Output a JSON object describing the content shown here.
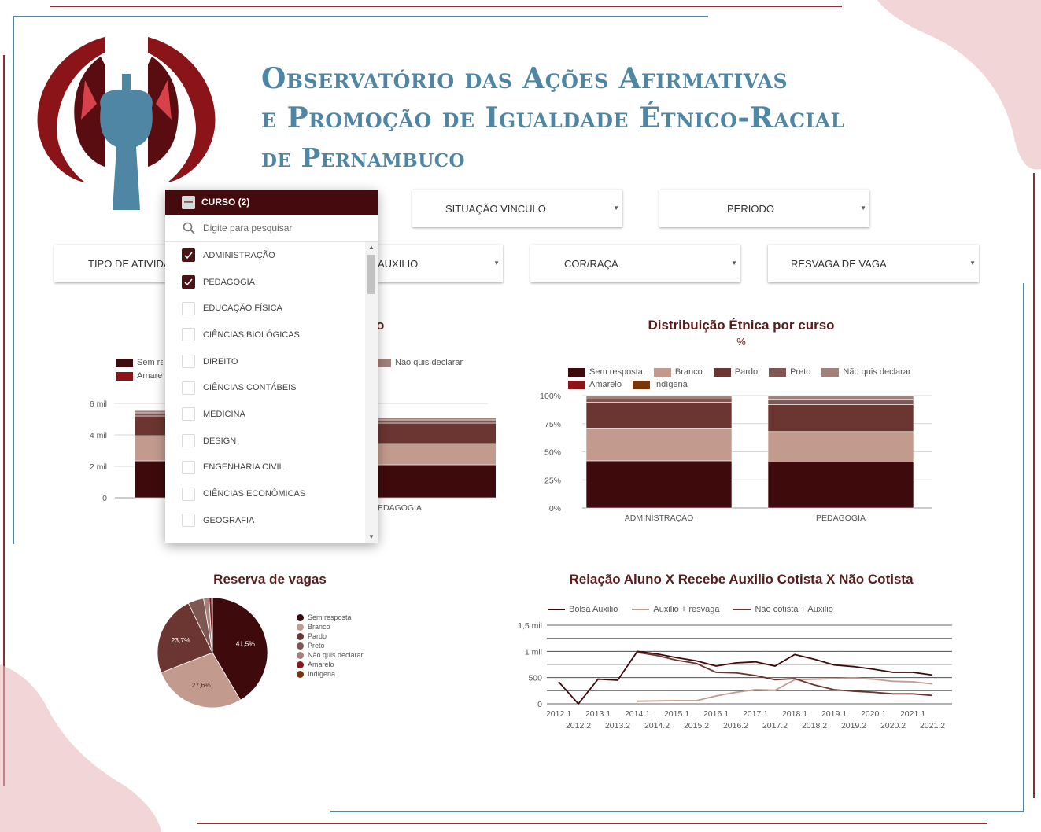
{
  "header": {
    "title_line1": "Observatório das Ações Afirmativas",
    "title_line2": "e Promoção de Igualdade Étnico-Racial",
    "title_line3": "de Pernambuco"
  },
  "filters": {
    "situacao_vinculo": "SITUAÇÃO VINCULO",
    "periodo": "PERIODO",
    "tipo_atividade": "TIPO DE ATIVIDA",
    "auxilio": "AUXILIO",
    "cor_raca": "COR/RAÇA",
    "resvaga": "RESVAGA DE VAGA"
  },
  "dropdown": {
    "title": "CURSO (2)",
    "search_placeholder": "Digite para pesquisar",
    "items": [
      {
        "label": "ADMINISTRAÇÃO",
        "checked": true
      },
      {
        "label": "PEDAGOGIA",
        "checked": true
      },
      {
        "label": "EDUCAÇÃO FÍSICA",
        "checked": false
      },
      {
        "label": "CIÊNCIAS BIOLÓGICAS",
        "checked": false
      },
      {
        "label": "DIREITO",
        "checked": false
      },
      {
        "label": "CIÊNCIAS CONTÁBEIS",
        "checked": false
      },
      {
        "label": "MEDICINA",
        "checked": false
      },
      {
        "label": "DESIGN",
        "checked": false
      },
      {
        "label": "ENGENHARIA CIVIL",
        "checked": false
      },
      {
        "label": "CIÊNCIAS ECONÔMICAS",
        "checked": false
      },
      {
        "label": "GEOGRAFIA",
        "checked": false
      }
    ]
  },
  "colors": {
    "sem_resposta": "#3f0a0c",
    "branco": "#c39a8e",
    "pardo": "#6b3531",
    "preto": "#7f5752",
    "nao_quis": "#a3817b",
    "amarelo": "#8b1418",
    "indigena": "#7a3608",
    "accent": "#430b0d",
    "title_blue": "#4e86a4"
  },
  "chart_data": [
    {
      "type": "bar",
      "title_suffix": "o",
      "legend": {
        "sem_resposta": "Sem res",
        "amarelo": "Amarelo",
        "nao_quis": "Não quis declarar"
      },
      "categories": [
        "ADMINISTRAÇÃO",
        "PEDAGOGIA"
      ],
      "category_labels_visible": [
        "",
        "EDAGOGIA"
      ],
      "ytick_labels": [
        "0",
        "2 mil",
        "4 mil",
        "6 mil"
      ],
      "ylim": [
        0,
        6000
      ],
      "stacked": true,
      "series": [
        {
          "name": "Sem resposta",
          "key": "sem_resposta",
          "values": [
            2350,
            2100
          ]
        },
        {
          "name": "Branco",
          "key": "branco",
          "values": [
            1600,
            1350
          ]
        },
        {
          "name": "Pardo",
          "key": "pardo",
          "values": [
            1250,
            1300
          ]
        },
        {
          "name": "Preto",
          "key": "preto",
          "values": [
            200,
            200
          ]
        },
        {
          "name": "Não quis declarar",
          "key": "nao_quis",
          "values": [
            150,
            150
          ]
        },
        {
          "name": "Amarelo",
          "key": "amarelo",
          "values": [
            30,
            30
          ]
        },
        {
          "name": "Indígena",
          "key": "indigena",
          "values": [
            20,
            20
          ]
        }
      ]
    },
    {
      "type": "bar",
      "title": "Distribuição Étnica por curso",
      "subtitle": "%",
      "categories": [
        "ADMINISTRAÇÃO",
        "PEDAGOGIA"
      ],
      "ytick_labels": [
        "0%",
        "25%",
        "50%",
        "75%",
        "100%"
      ],
      "ylim": [
        0,
        100
      ],
      "stacked": true,
      "series": [
        {
          "name": "Sem resposta",
          "key": "sem_resposta",
          "values": [
            42,
            41
          ]
        },
        {
          "name": "Branco",
          "key": "branco",
          "values": [
            29,
            27
          ]
        },
        {
          "name": "Pardo",
          "key": "pardo",
          "values": [
            23,
            24
          ]
        },
        {
          "name": "Preto",
          "key": "preto",
          "values": [
            3,
            4
          ]
        },
        {
          "name": "Não quis declarar",
          "key": "nao_quis",
          "values": [
            2.5,
            3.5
          ]
        },
        {
          "name": "Amarelo",
          "key": "amarelo",
          "values": [
            0.3,
            0.3
          ]
        },
        {
          "name": "Indígena",
          "key": "indigena",
          "values": [
            0.2,
            0.2
          ]
        }
      ]
    },
    {
      "type": "pie",
      "title": "Reserva de vagas",
      "slices": [
        {
          "name": "Sem resposta",
          "key": "sem_resposta",
          "value": 41.5,
          "label": "41,5%"
        },
        {
          "name": "Branco",
          "key": "branco",
          "value": 27.6,
          "label": "27,6%"
        },
        {
          "name": "Pardo",
          "key": "pardo",
          "value": 23.7,
          "label": "23,7%"
        },
        {
          "name": "Preto",
          "key": "preto",
          "value": 4.6,
          "label": ""
        },
        {
          "name": "Não quis declarar",
          "key": "nao_quis",
          "value": 1.6,
          "label": ""
        },
        {
          "name": "Amarelo",
          "key": "amarelo",
          "value": 0.8,
          "label": ""
        },
        {
          "name": "Indígena",
          "key": "indigena",
          "value": 0.2,
          "label": ""
        }
      ]
    },
    {
      "type": "line",
      "title": "Relação Aluno X Recebe Auxilio Cotista X Não Cotista",
      "x": [
        "2012.1",
        "2012.2",
        "2013.1",
        "2013.2",
        "2014.1",
        "2014.2",
        "2015.1",
        "2015.2",
        "2016.1",
        "2016.2",
        "2017.1",
        "2017.2",
        "2018.1",
        "2018.2",
        "2019.1",
        "2019.2",
        "2020.1",
        "2020.2",
        "2021.1",
        "2021.2"
      ],
      "ytick_labels": [
        "0",
        "500",
        "1 mil",
        "1,5 mil"
      ],
      "ylim": [
        0,
        1500
      ],
      "series": [
        {
          "name": "Bolsa Auxilio",
          "color": "#3f0a0c",
          "values": [
            420,
            0,
            470,
            450,
            1000,
            950,
            880,
            820,
            720,
            780,
            800,
            720,
            940,
            850,
            740,
            710,
            660,
            600,
            600,
            550
          ]
        },
        {
          "name": "Auxilio + resvaga",
          "color": "#c39a8e",
          "values": [
            null,
            null,
            null,
            null,
            50,
            55,
            60,
            60,
            150,
            220,
            270,
            260,
            460,
            470,
            480,
            490,
            470,
            430,
            420,
            380
          ]
        },
        {
          "name": "Não cotista + Auxilio",
          "color": "#6b3531",
          "values": [
            null,
            null,
            null,
            null,
            980,
            920,
            830,
            770,
            600,
            590,
            540,
            460,
            480,
            360,
            270,
            240,
            220,
            190,
            190,
            160
          ]
        }
      ]
    }
  ]
}
